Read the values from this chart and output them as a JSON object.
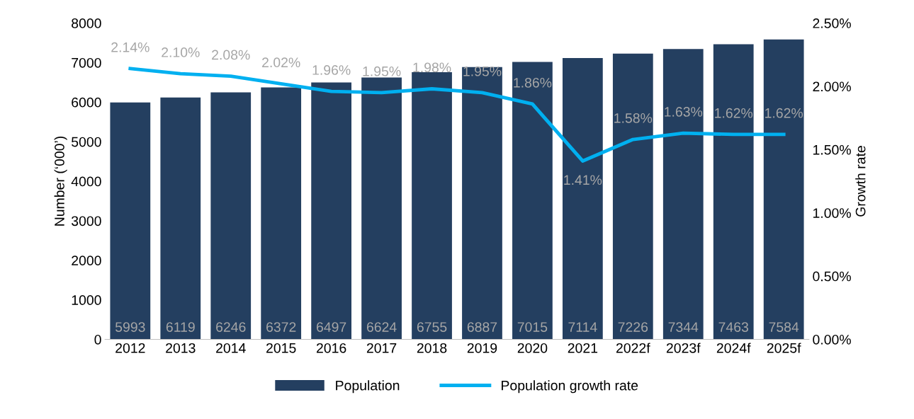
{
  "chart_data": {
    "type": "bar",
    "ylabel": "Number (‘000’)",
    "y2label": "Growth rate",
    "categories": [
      "2012",
      "2013",
      "2014",
      "2015",
      "2016",
      "2017",
      "2018",
      "2019",
      "2020",
      "2021",
      "2022f",
      "2023f",
      "2024f",
      "2025f"
    ],
    "series": [
      {
        "name": "Population",
        "color": "#243f60",
        "values": [
          5993,
          6119,
          6246,
          6372,
          6497,
          6624,
          6755,
          6887,
          7015,
          7114,
          7226,
          7344,
          7463,
          7584
        ],
        "value_labels": [
          "5993",
          "6119",
          "6246",
          "6372",
          "6497",
          "6624",
          "6755",
          "6887",
          "7015",
          "7114",
          "7226",
          "7344",
          "7463",
          "7584"
        ]
      },
      {
        "name": "Population growth rate",
        "type": "line",
        "axis": "y2",
        "color": "#00b0f0",
        "values": [
          2.14,
          2.1,
          2.08,
          2.02,
          1.96,
          1.95,
          1.98,
          1.95,
          1.86,
          1.41,
          1.58,
          1.63,
          1.62,
          1.62
        ],
        "value_labels": [
          "2.14%",
          "2.10%",
          "2.08%",
          "2.02%",
          "1.96%",
          "1.95%",
          "1.98%",
          "1.95%",
          "1.86%",
          "1.41%",
          "1.58%",
          "1.63%",
          "1.62%",
          "1.62%"
        ]
      }
    ],
    "ylim": [
      0,
      8000
    ],
    "yticks": [
      0,
      1000,
      2000,
      3000,
      4000,
      5000,
      6000,
      7000,
      8000
    ],
    "y2lim": [
      0,
      2.5
    ],
    "y2ticks": [
      {
        "value": 0,
        "label": "0.00%"
      },
      {
        "value": 0.5,
        "label": "0.50%"
      },
      {
        "value": 1.0,
        "label": "1.00%"
      },
      {
        "value": 1.5,
        "label": "1.50%"
      },
      {
        "value": 2.0,
        "label": "2.00%"
      },
      {
        "value": 2.5,
        "label": "2.50%"
      }
    ],
    "grid": false,
    "legend": "bottom",
    "marker": "none",
    "line_style": "solid"
  }
}
